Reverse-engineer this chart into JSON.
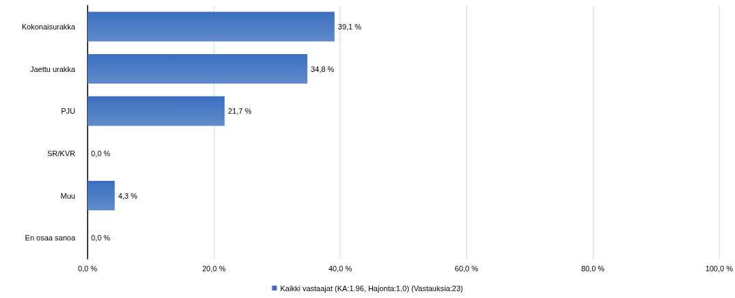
{
  "chart_data": {
    "type": "bar",
    "orientation": "horizontal",
    "categories": [
      "Kokonaisurakka",
      "Jaettu urakka",
      "PJU",
      "SR/KVR",
      "Muu",
      "En osaa sanoa"
    ],
    "series": [
      {
        "name": "Kaikki vastaajat (KA:1.96, Hajonta:1.0) (Vastauksia:23)",
        "color": "#3a6fbf",
        "values": [
          39.1,
          34.8,
          21.7,
          0,
          4.3,
          0
        ],
        "value_labels": [
          "39,1 %",
          "34,8 %",
          "21,7 %",
          "0,0 %",
          "4,3 %",
          "0,0 %"
        ]
      }
    ],
    "xlim": [
      0,
      100
    ],
    "xticks": [
      {
        "value": 0,
        "label": "0,0 %"
      },
      {
        "value": 20,
        "label": "20,0 %"
      },
      {
        "value": 40,
        "label": "40,0 %"
      },
      {
        "value": 60,
        "label": "60,0 %"
      },
      {
        "value": 80,
        "label": "80,0 %"
      },
      {
        "value": 100,
        "label": "100,0 %"
      }
    ],
    "grid": "x",
    "legend": "bottom"
  }
}
